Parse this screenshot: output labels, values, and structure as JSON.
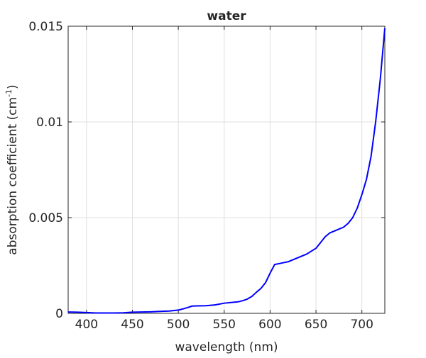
{
  "chart_data": {
    "type": "line",
    "title": "water",
    "xlabel": "wavelength (nm)",
    "ylabel": {
      "prefix": "absorption coefficient (cm",
      "superscript": "-1",
      "suffix": ")"
    },
    "xlim": [
      380,
      725
    ],
    "ylim": [
      0,
      0.015
    ],
    "x_ticks": [
      400,
      450,
      500,
      550,
      600,
      650,
      700
    ],
    "x_tick_labels": [
      "400",
      "450",
      "500",
      "550",
      "600",
      "650",
      "700"
    ],
    "y_ticks": [
      0,
      0.005,
      0.01,
      0.015
    ],
    "y_tick_labels": [
      "0",
      "0.005",
      "0.01",
      "0.015"
    ],
    "grid": true,
    "series": [
      {
        "color": "#0000ff",
        "x": [
          380,
          390,
          400,
          410,
          420,
          430,
          440,
          450,
          460,
          470,
          480,
          490,
          500,
          505,
          510,
          515,
          520,
          530,
          540,
          550,
          560,
          565,
          570,
          575,
          580,
          585,
          590,
          595,
          600,
          605,
          610,
          615,
          620,
          630,
          640,
          650,
          655,
          660,
          665,
          670,
          675,
          680,
          685,
          690,
          695,
          700,
          705,
          710,
          715,
          720,
          725
        ],
        "y": [
          7e-05,
          6e-05,
          4e-05,
          2e-05,
          2e-05,
          2e-05,
          3e-05,
          6e-05,
          7e-05,
          8e-05,
          0.0001,
          0.00012,
          0.00017,
          0.00023,
          0.0003,
          0.00038,
          0.00039,
          0.0004,
          0.00044,
          0.00053,
          0.00058,
          0.0006,
          0.00066,
          0.00074,
          0.00088,
          0.0011,
          0.0013,
          0.0016,
          0.0021,
          0.00255,
          0.0026,
          0.00265,
          0.0027,
          0.0029,
          0.0031,
          0.0034,
          0.0037,
          0.004,
          0.0042,
          0.0043,
          0.0044,
          0.0045,
          0.0047,
          0.005,
          0.0055,
          0.0062,
          0.007,
          0.0082,
          0.01,
          0.0122,
          0.0149
        ]
      }
    ]
  }
}
